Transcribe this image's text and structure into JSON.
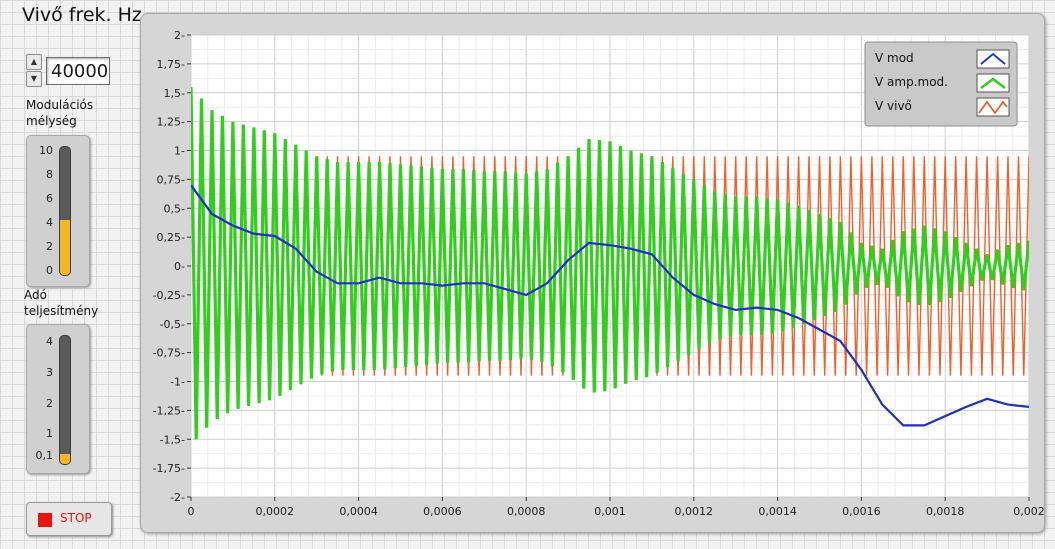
{
  "controls": {
    "carrier_freq": {
      "label": "Vivő frek. Hz",
      "value": "40000"
    },
    "modulation_depth": {
      "label_line1": "Modulációs",
      "label_line2": "mélység",
      "ticks": [
        "10",
        "8",
        "6",
        "4",
        "2",
        "0"
      ],
      "value": 4.3,
      "min": 0,
      "max": 10
    },
    "transmitter_power": {
      "label_line1": "Adó",
      "label_line2": "teljesítmény",
      "ticks": [
        "4",
        "3",
        "2",
        "1",
        "0,1"
      ],
      "value": 0.1,
      "min": 0.1,
      "max": 4
    },
    "stop_button": {
      "label": "STOP"
    }
  },
  "colors": {
    "v_mod": "#1f2fc4",
    "v_amp_mod": "#33cc1f",
    "v_carrier": "#f0602a",
    "fill_indicator": "#f5b623",
    "stop": "#e8140e"
  },
  "chart_data": {
    "type": "line",
    "xlim": [
      0,
      0.002
    ],
    "ylim": [
      -2,
      2
    ],
    "grid": true,
    "legend_position": "top-right",
    "x_tick_labels": [
      "0",
      "0,0002",
      "0,0004",
      "0,0006",
      "0,0008",
      "0,001",
      "0,0012",
      "0,0014",
      "0,0016",
      "0,0018",
      "0,002"
    ],
    "y_tick_labels": [
      "2",
      "1,75",
      "1,5",
      "1,25",
      "1",
      "0,75",
      "0,5",
      "0,25",
      "0",
      "-0,25",
      "-0,5",
      "-0,75",
      "-1",
      "-1,25",
      "-1,5",
      "-1,75",
      "-2"
    ],
    "series": [
      {
        "name": "V mod",
        "color": "#1f2fc4",
        "x": [
          0,
          5e-05,
          0.0001,
          0.00015,
          0.0002,
          0.00025,
          0.0003,
          0.00035,
          0.0004,
          0.00045,
          0.0005,
          0.00055,
          0.0006,
          0.00065,
          0.0007,
          0.00075,
          0.0008,
          0.00085,
          0.0009,
          0.00095,
          0.001,
          0.00105,
          0.0011,
          0.00115,
          0.0012,
          0.00125,
          0.0013,
          0.00135,
          0.0014,
          0.00145,
          0.0015,
          0.00155,
          0.0016,
          0.00165,
          0.0017,
          0.00175,
          0.0018,
          0.00185,
          0.0019,
          0.00195,
          0.002
        ],
        "y": [
          0.7,
          0.45,
          0.35,
          0.28,
          0.26,
          0.15,
          -0.05,
          -0.15,
          -0.15,
          -0.1,
          -0.15,
          -0.15,
          -0.17,
          -0.15,
          -0.15,
          -0.2,
          -0.25,
          -0.15,
          0.05,
          0.2,
          0.18,
          0.15,
          0.1,
          -0.1,
          -0.25,
          -0.33,
          -0.38,
          -0.36,
          -0.38,
          -0.45,
          -0.55,
          -0.65,
          -0.9,
          -1.2,
          -1.38,
          -1.38,
          -1.3,
          -1.22,
          -1.15,
          -1.2,
          -1.22
        ]
      },
      {
        "name": "V amp.mod.",
        "color": "#33cc1f",
        "envelope_x": [
          0,
          5e-05,
          0.0001,
          0.00015,
          0.0002,
          0.00025,
          0.0003,
          0.00035,
          0.0004,
          0.00045,
          0.0005,
          0.00055,
          0.0006,
          0.00065,
          0.0007,
          0.00075,
          0.0008,
          0.00085,
          0.0009,
          0.00095,
          0.001,
          0.00105,
          0.0011,
          0.00115,
          0.0012,
          0.00125,
          0.0013,
          0.00135,
          0.0014,
          0.00145,
          0.0015,
          0.00155,
          0.0016,
          0.00165,
          0.0017,
          0.00175,
          0.0018,
          0.00185,
          0.0019,
          0.00195,
          0.002
        ],
        "envelope_y": [
          1.55,
          1.35,
          1.25,
          1.2,
          1.15,
          1.05,
          0.95,
          0.9,
          0.9,
          0.9,
          0.88,
          0.86,
          0.84,
          0.84,
          0.82,
          0.82,
          0.8,
          0.84,
          0.95,
          1.1,
          1.08,
          1.0,
          0.95,
          0.85,
          0.75,
          0.65,
          0.6,
          0.6,
          0.58,
          0.52,
          0.45,
          0.38,
          0.2,
          0.15,
          0.3,
          0.35,
          0.3,
          0.2,
          0.1,
          0.18,
          0.22
        ],
        "cycles": 80
      },
      {
        "name": "V vivő",
        "color": "#f0602a",
        "amplitude": 0.95,
        "cycles": 80
      }
    ]
  }
}
